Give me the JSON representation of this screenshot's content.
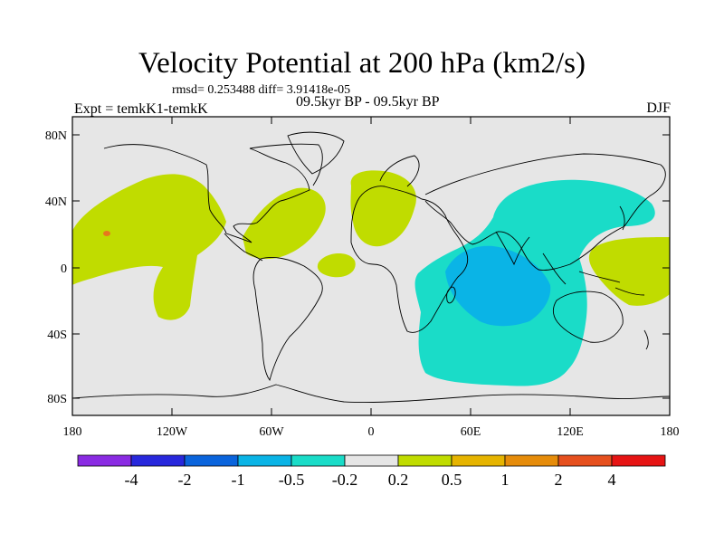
{
  "title": "Velocity Potential at 200 hPa (km2/s)",
  "stats": "rmsd= 0.253488 diff= 3.91418e-05",
  "experiment": "Expt = temkK1-temkK",
  "period": "09.5kyr BP - 09.5kyr BP",
  "season": "DJF",
  "colors": {
    "background": "#e6e6e6",
    "pos_0_2": "#c0dc00",
    "neg_0_2": "#1adcc8",
    "neg_0_5": "#0ab4e6",
    "pos_1": "#e6781e"
  },
  "lat_labels": [
    "80N",
    "40N",
    "0",
    "40S",
    "80S"
  ],
  "lon_labels": [
    "180",
    "120W",
    "60W",
    "0",
    "60E",
    "120E",
    "180"
  ],
  "colorbar": {
    "boxes": [
      {
        "color": "#8a2be2"
      },
      {
        "color": "#2828dc"
      },
      {
        "color": "#0a64dc"
      },
      {
        "color": "#0ab4e6"
      },
      {
        "color": "#1adcc8"
      },
      {
        "color": "#e6e6e6"
      },
      {
        "color": "#c0dc00"
      },
      {
        "color": "#e6b400"
      },
      {
        "color": "#e68c0a"
      },
      {
        "color": "#e6501e"
      },
      {
        "color": "#e61414"
      }
    ],
    "labels": [
      "-4",
      "-2",
      "-1",
      "-0.5",
      "-0.2",
      "0.2",
      "0.5",
      "1",
      "2",
      "4"
    ]
  }
}
